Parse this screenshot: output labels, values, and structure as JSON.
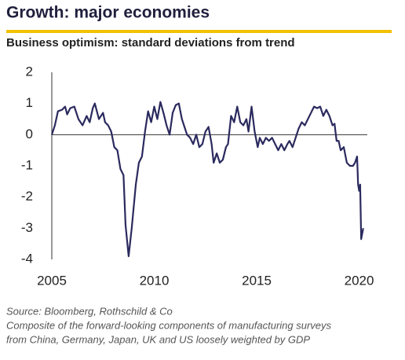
{
  "chart_data": {
    "type": "line",
    "title": "Growth: major economies",
    "subtitle": "Business optimism: standard deviations from trend",
    "source": "Source: Bloomberg, Rothschild & Co",
    "notes": [
      "Composite of the forward-looking components of manufacturing surveys",
      "from China, Germany, Japan, UK and US loosely weighted by GDP"
    ],
    "x": [
      2005.0,
      2005.15,
      2005.3,
      2005.5,
      2005.65,
      2005.75,
      2005.9,
      2006.1,
      2006.3,
      2006.5,
      2006.7,
      2006.85,
      2007.0,
      2007.1,
      2007.3,
      2007.5,
      2007.6,
      2007.75,
      2007.9,
      2008.05,
      2008.2,
      2008.35,
      2008.5,
      2008.6,
      2008.75,
      2008.9,
      2009.1,
      2009.25,
      2009.4,
      2009.55,
      2009.7,
      2009.85,
      2010.0,
      2010.15,
      2010.3,
      2010.45,
      2010.6,
      2010.75,
      2010.9,
      2011.05,
      2011.2,
      2011.35,
      2011.5,
      2011.6,
      2011.75,
      2011.9,
      2012.05,
      2012.2,
      2012.35,
      2012.5,
      2012.65,
      2012.8,
      2012.9,
      2013.05,
      2013.2,
      2013.35,
      2013.5,
      2013.6,
      2013.75,
      2013.9,
      2014.05,
      2014.2,
      2014.35,
      2014.5,
      2014.6,
      2014.75,
      2014.9,
      2015.05,
      2015.15,
      2015.3,
      2015.45,
      2015.6,
      2015.75,
      2015.9,
      2016.05,
      2016.2,
      2016.35,
      2016.5,
      2016.6,
      2016.75,
      2016.9,
      2017.05,
      2017.2,
      2017.35,
      2017.5,
      2017.65,
      2017.8,
      2017.95,
      2018.1,
      2018.25,
      2018.4,
      2018.55,
      2018.7,
      2018.8,
      2018.9,
      2019.0,
      2019.1,
      2019.25,
      2019.4,
      2019.55,
      2019.7,
      2019.8,
      2019.9,
      2019.95,
      2020.0,
      2020.05,
      2020.1,
      2020.2
    ],
    "series": [
      {
        "color": "#2b2a5e",
        "values": [
          0.0,
          0.3,
          0.75,
          0.8,
          0.9,
          0.65,
          0.85,
          0.9,
          0.5,
          0.3,
          0.6,
          0.4,
          0.85,
          1.0,
          0.5,
          0.7,
          0.4,
          0.3,
          0.1,
          -0.4,
          -0.5,
          -1.1,
          -1.3,
          -2.9,
          -3.9,
          -3.0,
          -1.6,
          -0.9,
          -0.7,
          0.1,
          0.75,
          0.4,
          0.9,
          0.5,
          1.05,
          0.7,
          0.3,
          0.0,
          0.7,
          0.95,
          1.0,
          0.5,
          0.2,
          0.0,
          -0.1,
          -0.3,
          0.0,
          -0.4,
          -0.3,
          0.1,
          0.25,
          -0.3,
          -0.9,
          -0.6,
          -0.9,
          -0.8,
          -0.4,
          -0.3,
          0.6,
          0.4,
          0.9,
          0.4,
          0.3,
          0.5,
          0.1,
          0.9,
          0.1,
          -0.4,
          -0.1,
          -0.3,
          -0.1,
          -0.2,
          -0.1,
          -0.3,
          -0.5,
          -0.3,
          -0.5,
          -0.3,
          -0.2,
          -0.4,
          -0.1,
          0.2,
          0.4,
          0.3,
          0.5,
          0.7,
          0.9,
          0.85,
          0.9,
          0.6,
          0.8,
          0.6,
          0.3,
          0.35,
          -0.2,
          -0.2,
          -0.5,
          -0.4,
          -0.9,
          -1.0,
          -1.0,
          -0.9,
          -0.7,
          -1.6,
          -1.8,
          -1.6,
          -3.35,
          -3.0
        ]
      }
    ],
    "xlim": [
      2005,
      2020.4
    ],
    "xticks": [
      2005,
      2010,
      2015,
      2020
    ],
    "ylim": [
      -4,
      2
    ],
    "yticks": [
      2,
      1,
      0,
      -1,
      -2,
      -3,
      -4
    ],
    "zero_line": true
  }
}
